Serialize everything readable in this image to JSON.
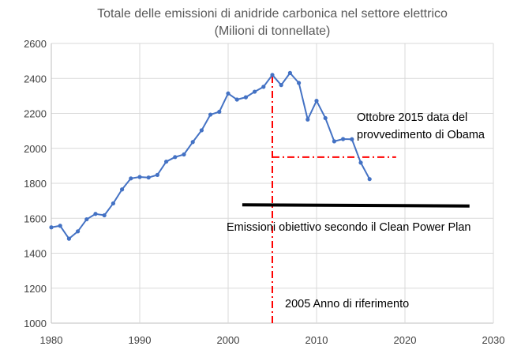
{
  "chart_data": {
    "type": "line",
    "title": "Totale delle emissioni di anidride carbonica nel settore elettrico",
    "subtitle": "(Milioni di tonnellate)",
    "xlim": [
      1980,
      2030
    ],
    "ylim": [
      1000,
      2600
    ],
    "x_ticks": [
      "1980",
      "1990",
      "2000",
      "2010",
      "2020",
      "2030"
    ],
    "y_ticks": [
      "1000",
      "1200",
      "1400",
      "1600",
      "1800",
      "2000",
      "2200",
      "2400",
      "2600"
    ],
    "grid": "vertical and horizontal",
    "series": [
      {
        "color": "#4472c4",
        "x": [
          1980,
          1981,
          1982,
          1983,
          1984,
          1985,
          1986,
          1987,
          1988,
          1989,
          1990,
          1991,
          1992,
          1993,
          1994,
          1995,
          1996,
          1997,
          1998,
          1999,
          2000,
          2001,
          2002,
          2003,
          2004,
          2005,
          2006,
          2007,
          2008,
          2009,
          2010,
          2011,
          2012,
          2013,
          2014,
          2015,
          2016
        ],
        "y": [
          1548,
          1557,
          1483,
          1525,
          1594,
          1625,
          1617,
          1685,
          1765,
          1828,
          1836,
          1833,
          1848,
          1924,
          1950,
          1965,
          2036,
          2103,
          2193,
          2209,
          2314,
          2279,
          2292,
          2324,
          2352,
          2420,
          2362,
          2431,
          2374,
          2165,
          2272,
          2173,
          2040,
          2053,
          2052,
          1918,
          1824
        ]
      }
    ],
    "reference_lines": [
      {
        "name": "vertical-2005",
        "type": "vertical",
        "x": 2005,
        "y_from": 1000,
        "y_to": 2420,
        "color": "#ff0000",
        "style": "dash-dot"
      },
      {
        "name": "target-2015",
        "type": "horizontal",
        "y": 1950,
        "x_from": 2005,
        "x_to": 2019,
        "color": "#ff0000",
        "style": "dash-dot"
      },
      {
        "name": "clean-power-plan-target",
        "type": "line",
        "x_from": 2001.6,
        "y_from": 1677,
        "x_to": 2027.3,
        "y_to": 1670,
        "color": "#000000",
        "style": "solid"
      }
    ],
    "annotations": {
      "ottobre_line1": "Ottobre 2015 data del",
      "ottobre_line2": "provvedimento di Obama",
      "emissioni": "Emissioni obiettivo secondo il Clean Power Plan",
      "anno_riferimento": "2005 Anno di riferimento"
    }
  }
}
